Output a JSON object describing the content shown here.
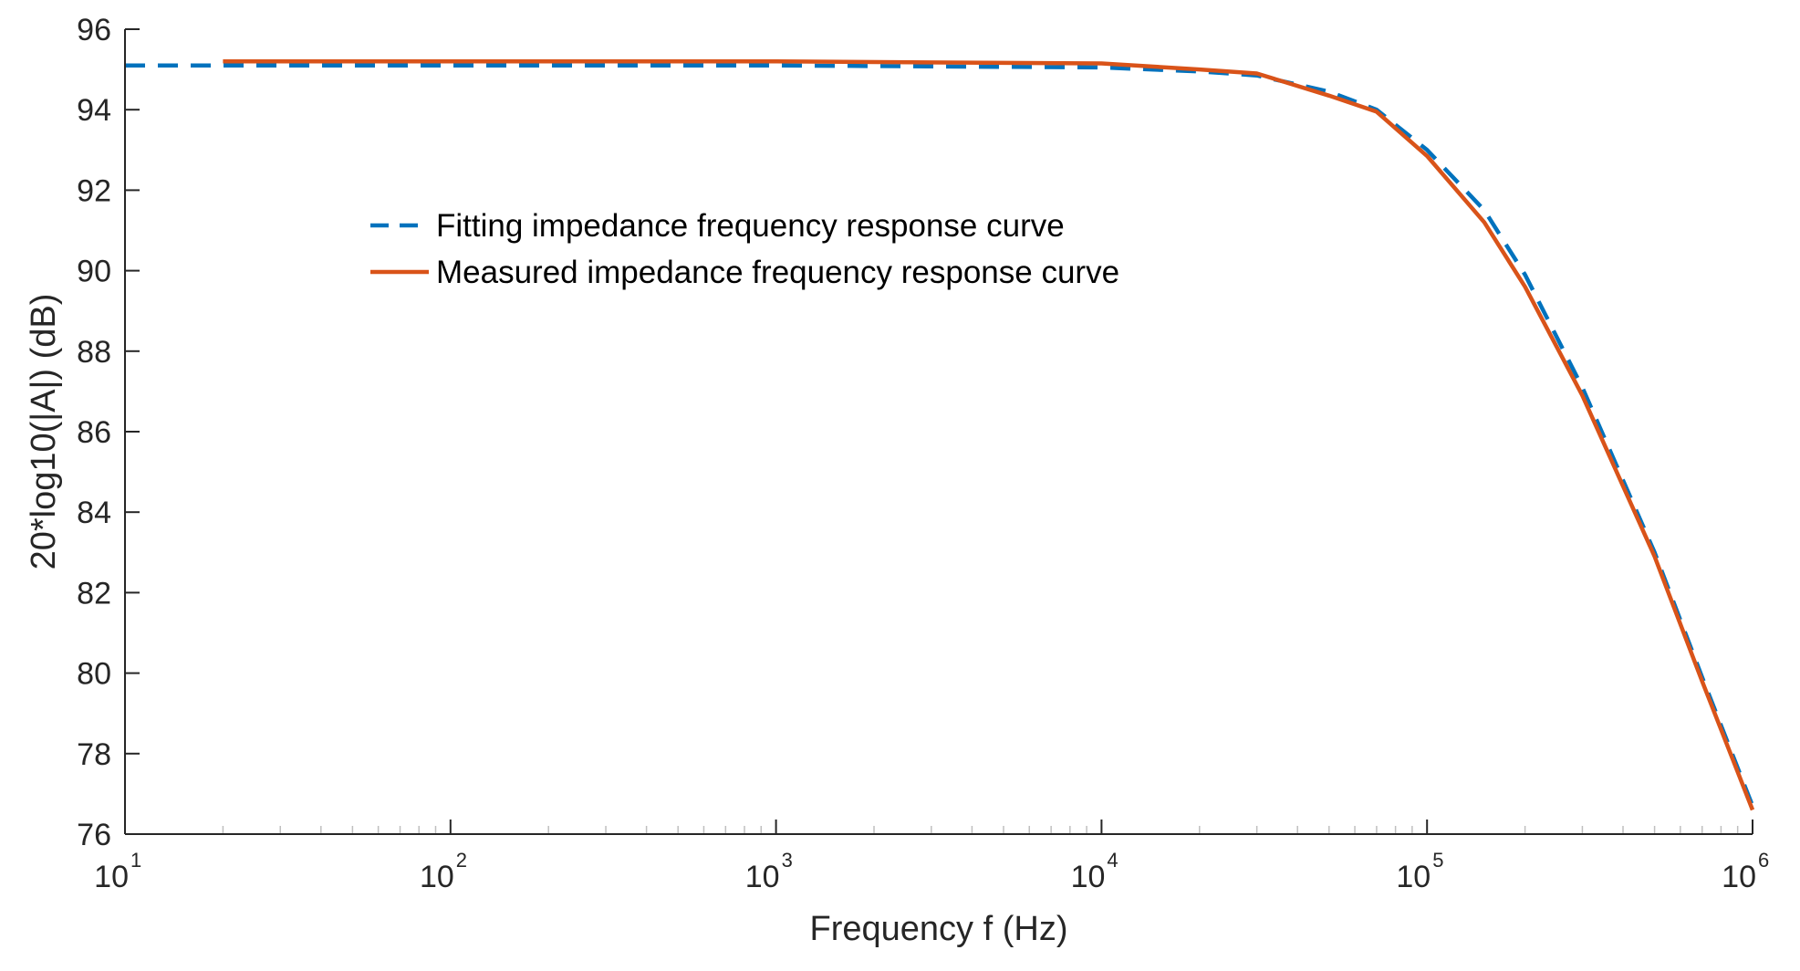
{
  "chart_data": {
    "type": "line",
    "xscale": "log",
    "xlim": [
      10,
      1000000
    ],
    "ylim": [
      76,
      96
    ],
    "xlabel": "Frequency f (Hz)",
    "ylabel": "20*log10(|A|) (dB)",
    "grid": false,
    "legend_position": "upper-left-center",
    "x_ticks": [
      {
        "base": "10",
        "exp": "1",
        "value": 10
      },
      {
        "base": "10",
        "exp": "2",
        "value": 100
      },
      {
        "base": "10",
        "exp": "3",
        "value": 1000
      },
      {
        "base": "10",
        "exp": "4",
        "value": 10000
      },
      {
        "base": "10",
        "exp": "5",
        "value": 100000
      },
      {
        "base": "10",
        "exp": "6",
        "value": 1000000
      }
    ],
    "y_ticks": [
      "76",
      "78",
      "80",
      "82",
      "84",
      "86",
      "88",
      "90",
      "92",
      "94",
      "96"
    ],
    "series": [
      {
        "name": "Fitting impedance frequency response curve",
        "color": "#0072BD",
        "style": "dashed",
        "points": [
          [
            10,
            95.1
          ],
          [
            1000,
            95.1
          ],
          [
            10000,
            95.05
          ],
          [
            20000,
            94.95
          ],
          [
            30000,
            94.85
          ],
          [
            50000,
            94.45
          ],
          [
            70000,
            94.0
          ],
          [
            100000,
            93.0
          ],
          [
            150000,
            91.5
          ],
          [
            200000,
            89.9
          ],
          [
            300000,
            87.1
          ],
          [
            500000,
            83.0
          ],
          [
            700000,
            79.9
          ],
          [
            1000000,
            76.7
          ]
        ]
      },
      {
        "name": "Measured impedance frequency response curve",
        "color": "#D95319",
        "style": "solid",
        "points": [
          [
            20,
            95.2
          ],
          [
            1000,
            95.2
          ],
          [
            10000,
            95.15
          ],
          [
            20000,
            95.0
          ],
          [
            30000,
            94.9
          ],
          [
            50000,
            94.35
          ],
          [
            70000,
            93.95
          ],
          [
            100000,
            92.85
          ],
          [
            150000,
            91.2
          ],
          [
            200000,
            89.6
          ],
          [
            300000,
            86.9
          ],
          [
            500000,
            82.9
          ],
          [
            700000,
            79.8
          ],
          [
            1000000,
            76.6
          ]
        ]
      }
    ]
  }
}
